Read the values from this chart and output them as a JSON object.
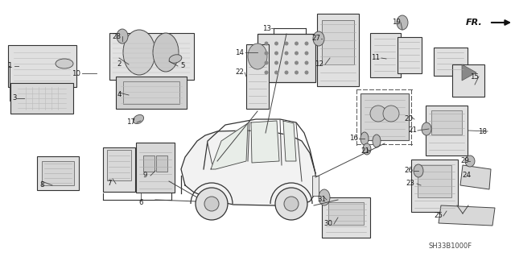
{
  "bg_color": "#ffffff",
  "fig_width": 6.4,
  "fig_height": 3.19,
  "diagram_code": "SH33B1000F",
  "text_color": "#1a1a1a",
  "line_color": "#333333",
  "gray_fill": "#cccccc",
  "light_gray": "#e8e8e8",
  "mid_gray": "#aaaaaa",
  "dark_gray": "#555555"
}
